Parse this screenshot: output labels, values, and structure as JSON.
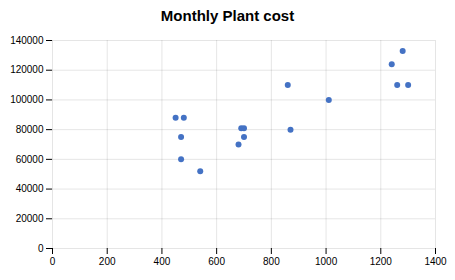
{
  "chart_data": {
    "type": "scatter",
    "title": "Monthly Plant cost",
    "x": [
      450,
      470,
      470,
      480,
      540,
      680,
      690,
      700,
      700,
      860,
      870,
      1010,
      1240,
      1260,
      1280,
      1300
    ],
    "values": [
      88000,
      75000,
      60000,
      88000,
      52000,
      70000,
      81000,
      75000,
      81000,
      110000,
      80000,
      100000,
      124000,
      110000,
      133000,
      110000
    ],
    "color": "#4472c4",
    "xlim": [
      0,
      1400
    ],
    "ylim": [
      0,
      140000
    ],
    "xticks": [
      0,
      200,
      400,
      600,
      800,
      1000,
      1200,
      1400
    ],
    "yticks": [
      0,
      20000,
      40000,
      60000,
      80000,
      100000,
      120000,
      140000
    ],
    "grid": true
  }
}
